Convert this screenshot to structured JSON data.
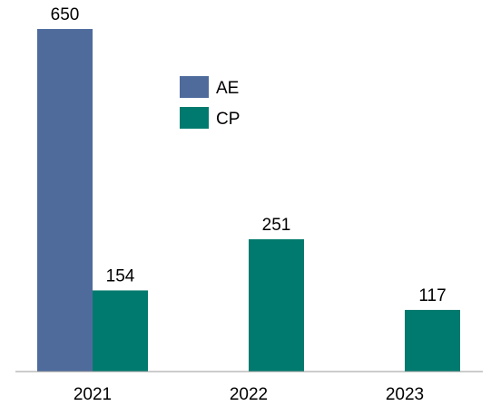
{
  "chart_data": {
    "type": "bar",
    "categories": [
      "2021",
      "2022",
      "2023"
    ],
    "series": [
      {
        "name": "AE",
        "color": "#4e6b9c",
        "values": [
          650,
          null,
          null
        ],
        "labels": [
          "650",
          "",
          ""
        ]
      },
      {
        "name": "CP",
        "color": "#007a6e",
        "values": [
          154,
          251,
          117
        ],
        "labels": [
          "154",
          "251",
          "117"
        ]
      }
    ],
    "title": "",
    "xlabel": "",
    "ylabel": "",
    "ylim": [
      0,
      650
    ],
    "grid": false,
    "legend": "top-center",
    "axis_color": "#999999"
  }
}
